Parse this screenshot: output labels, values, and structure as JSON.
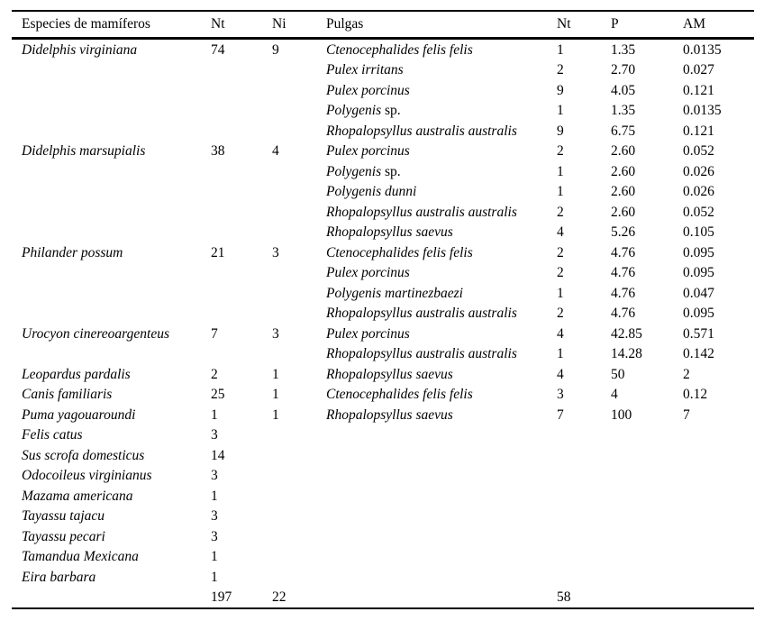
{
  "table": {
    "columns": [
      {
        "key": "mammal",
        "label": "Especies de mamíferos"
      },
      {
        "key": "nt",
        "label": "Nt"
      },
      {
        "key": "ni",
        "label": "Ni"
      },
      {
        "key": "flea",
        "label": "Pulgas"
      },
      {
        "key": "flea_nt",
        "label": "Nt"
      },
      {
        "key": "p",
        "label": "P"
      },
      {
        "key": "am",
        "label": "AM"
      }
    ],
    "rows": [
      {
        "mammal": "Didelphis virginiana",
        "nt": "74",
        "ni": "9",
        "flea": "Ctenocephalides felis felis",
        "flea_nt": "1",
        "p": "1.35",
        "am": "0.0135"
      },
      {
        "flea": "Pulex irritans",
        "flea_nt": "2",
        "p": "2.70",
        "am": "0.027"
      },
      {
        "flea": "Pulex porcinus",
        "flea_nt": "9",
        "p": "4.05",
        "am": "0.121"
      },
      {
        "flea": "Polygenis",
        "flea_suffix": " sp.",
        "flea_nt": "1",
        "p": "1.35",
        "am": "0.0135"
      },
      {
        "flea": "Rhopalopsyllus australis australis",
        "flea_nt": "9",
        "p": "6.75",
        "am": "0.121"
      },
      {
        "mammal": "Didelphis marsupialis",
        "nt": "38",
        "ni": "4",
        "flea": "Pulex porcinus",
        "flea_nt": "2",
        "p": "2.60",
        "am": "0.052"
      },
      {
        "flea": "Polygenis",
        "flea_suffix": " sp.",
        "flea_nt": "1",
        "p": "2.60",
        "am": "0.026"
      },
      {
        "flea": "Polygenis dunni",
        "flea_nt": "1",
        "p": "2.60",
        "am": "0.026"
      },
      {
        "flea": "Rhopalopsyllus australis australis",
        "flea_nt": "2",
        "p": "2.60",
        "am": "0.052"
      },
      {
        "flea": "Rhopalopsyllus saevus",
        "flea_nt": "4",
        "p": "5.26",
        "am": "0.105"
      },
      {
        "mammal": "Philander possum",
        "nt": "21",
        "ni": "3",
        "flea": "Ctenocephalides felis felis",
        "flea_nt": "2",
        "p": "4.76",
        "am": "0.095"
      },
      {
        "flea": "Pulex porcinus",
        "flea_nt": "2",
        "p": "4.76",
        "am": "0.095"
      },
      {
        "flea": "Polygenis martinezbaezi",
        "flea_nt": "1",
        "p": "4.76",
        "am": "0.047"
      },
      {
        "flea": "Rhopalopsyllus australis australis",
        "flea_nt": "2",
        "p": "4.76",
        "am": "0.095"
      },
      {
        "mammal": "Urocyon cinereoargenteus",
        "nt": "7",
        "ni": "3",
        "flea": "Pulex porcinus",
        "flea_nt": "4",
        "p": "42.85",
        "am": "0.571"
      },
      {
        "flea": "Rhopalopsyllus australis australis",
        "flea_nt": "1",
        "p": "14.28",
        "am": "0.142"
      },
      {
        "mammal": "Leopardus pardalis",
        "nt": "2",
        "ni": "1",
        "flea": "Rhopalopsyllus saevus",
        "flea_nt": "4",
        "p": "50",
        "am": "2"
      },
      {
        "mammal": "Canis familiaris",
        "nt": "25",
        "ni": "1",
        "flea": "Ctenocephalides felis felis",
        "flea_nt": "3",
        "p": "4",
        "am": "0.12"
      },
      {
        "mammal": "Puma yagouaroundi",
        "nt": "1",
        "ni": "1",
        "flea": "Rhopalopsyllus saevus",
        "flea_nt": "7",
        "p": "100",
        "am": "7"
      },
      {
        "mammal": "Felis catus",
        "nt": "3"
      },
      {
        "mammal": "Sus scrofa domesticus",
        "nt": "14"
      },
      {
        "mammal": "Odocoileus virginianus",
        "nt": "3"
      },
      {
        "mammal": "Mazama americana",
        "nt": "1"
      },
      {
        "mammal": "Tayassu tajacu",
        "nt": "3"
      },
      {
        "mammal": "Tayassu pecari",
        "nt": "3"
      },
      {
        "mammal": "Tamandua Mexicana",
        "nt": "1"
      },
      {
        "mammal": "Eira barbara",
        "nt": "1"
      },
      {
        "totals": true,
        "nt": "197",
        "ni": "22",
        "flea_nt": "58"
      }
    ]
  }
}
